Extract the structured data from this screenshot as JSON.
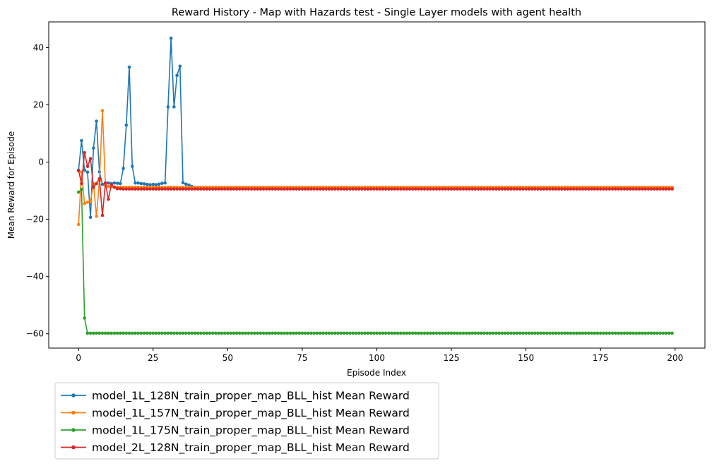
{
  "chart_data": {
    "type": "line",
    "title": "Reward History - Map with Hazards test - Single Layer models with agent health",
    "xlabel": "Episode Index",
    "ylabel": "Mean Reward for Episode",
    "xlim": [
      -10,
      210
    ],
    "ylim": [
      -65,
      49
    ],
    "xticks": [
      0,
      25,
      50,
      75,
      100,
      125,
      150,
      175,
      200
    ],
    "yticks": [
      -60,
      -40,
      -20,
      0,
      20,
      40
    ],
    "legend_position": "below-left",
    "grid": false,
    "n_episodes": 200,
    "series": [
      {
        "name": "model_1L_128N_train_proper_map_BLL_hist Mean Reward",
        "color": "#1f77b4",
        "head": [
          -2.8,
          7.5,
          -2.8,
          -3.5,
          -19.3,
          4.9,
          14.3,
          -3.4,
          -7.8,
          -7.3,
          -7.3,
          -7.5,
          -7.3,
          -7.4,
          -7.5,
          -2.2,
          12.9,
          33.2,
          -1.5,
          -7.3,
          -7.3,
          -7.5,
          -7.6,
          -7.8,
          -7.9,
          -7.8,
          -7.9,
          -7.7,
          -7.4,
          -7.3,
          19.3,
          43.3,
          19.3,
          30.3,
          33.5,
          -7.2,
          -7.7,
          -8.0,
          -8.5,
          -8.8
        ],
        "tail": -8.8
      },
      {
        "name": "model_1L_157N_train_proper_map_BLL_hist Mean Reward",
        "color": "#ff7f0e",
        "head": [
          -21.8,
          -3.5,
          -14.5,
          -14.0,
          -13.7,
          -7.6,
          -18.9,
          -6.4,
          18.0,
          -8.0,
          -8.5,
          -8.6,
          -8.7,
          -8.8,
          -8.8
        ],
        "tail": -8.8
      },
      {
        "name": "model_1L_175N_train_proper_map_BLL_hist Mean Reward",
        "color": "#2ca02c",
        "head": [
          -10.5,
          -9.5,
          -54.5,
          -59.8
        ],
        "tail": -59.8
      },
      {
        "name": "model_2L_128N_train_proper_map_BLL_hist Mean Reward",
        "color": "#d62728",
        "head": [
          -3.0,
          -7.5,
          3.3,
          -1.5,
          1.2,
          -8.8,
          -7.5,
          -5.8,
          -18.6,
          -7.3,
          -13.0,
          -7.8,
          -8.8,
          -9.3,
          -9.3,
          -9.4
        ],
        "tail": -9.4
      }
    ]
  }
}
